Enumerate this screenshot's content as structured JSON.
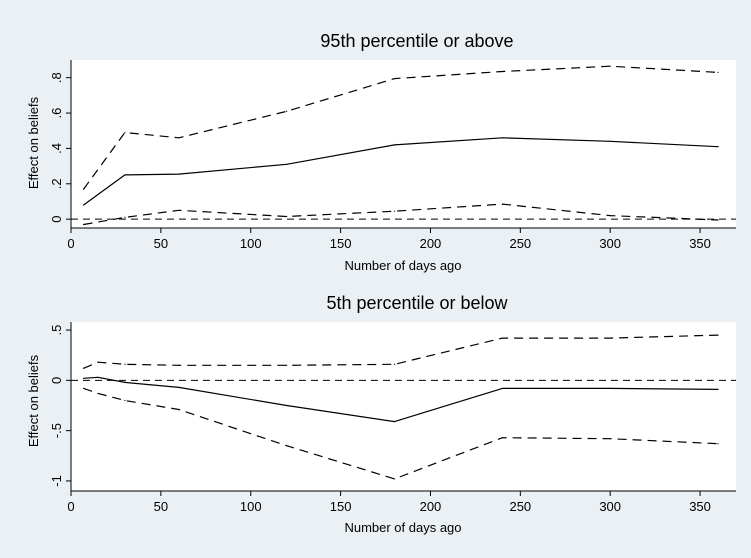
{
  "colors": {
    "background": "#eaf0f4",
    "plot_region": "#ffffff",
    "ink": "#000000"
  },
  "chart_data": [
    {
      "type": "line",
      "title": "95th percentile or above",
      "xlabel": "Number of days ago",
      "ylabel": "Effect on beliefs",
      "xlim": [
        0,
        370
      ],
      "ylim": [
        -0.05,
        0.9
      ],
      "xticks": [
        0,
        50,
        100,
        150,
        200,
        250,
        300,
        350
      ],
      "yticks": [
        0,
        0.2,
        0.4,
        0.6,
        0.8
      ],
      "xtick_labels": [
        "0",
        "50",
        "100",
        "150",
        "200",
        "250",
        "300",
        "350"
      ],
      "ytick_labels": [
        "0",
        ".2",
        ".4",
        ".6",
        ".8"
      ],
      "grid": false,
      "reference_line": {
        "y": 0,
        "style": "dashed"
      },
      "series": [
        {
          "role": "estimate",
          "style": "solid",
          "x": [
            7,
            30,
            60,
            120,
            180,
            240,
            300,
            360
          ],
          "y": [
            0.08,
            0.25,
            0.255,
            0.31,
            0.42,
            0.46,
            0.44,
            0.41
          ]
        },
        {
          "role": "upper_ci",
          "style": "dashed",
          "x": [
            7,
            30,
            60,
            120,
            180,
            240,
            300,
            360
          ],
          "y": [
            0.17,
            0.49,
            0.46,
            0.61,
            0.795,
            0.835,
            0.865,
            0.83
          ]
        },
        {
          "role": "lower_ci",
          "style": "dashed",
          "x": [
            7,
            30,
            60,
            120,
            180,
            240,
            300,
            360
          ],
          "y": [
            -0.03,
            0.01,
            0.05,
            0.015,
            0.045,
            0.085,
            0.02,
            -0.005
          ]
        }
      ]
    },
    {
      "type": "line",
      "title": "5th percentile or below",
      "xlabel": "Number of days ago",
      "ylabel": "Effect on beliefs",
      "xlim": [
        0,
        370
      ],
      "ylim": [
        -1.1,
        0.58
      ],
      "xticks": [
        0,
        50,
        100,
        150,
        200,
        250,
        300,
        350
      ],
      "yticks": [
        -1,
        -0.5,
        0,
        0.5
      ],
      "xtick_labels": [
        "0",
        "50",
        "100",
        "150",
        "200",
        "250",
        "300",
        "350"
      ],
      "ytick_labels": [
        "-1",
        "-.5",
        "0",
        ".5"
      ],
      "grid": false,
      "reference_line": {
        "y": 0,
        "style": "dashed"
      },
      "series": [
        {
          "role": "estimate",
          "style": "solid",
          "x": [
            7,
            15,
            30,
            60,
            120,
            180,
            240,
            300,
            360
          ],
          "y": [
            0.02,
            0.03,
            -0.02,
            -0.07,
            -0.25,
            -0.41,
            -0.08,
            -0.08,
            -0.09
          ]
        },
        {
          "role": "upper_ci",
          "style": "dashed",
          "x": [
            7,
            15,
            30,
            60,
            120,
            180,
            240,
            300,
            360
          ],
          "y": [
            0.12,
            0.18,
            0.16,
            0.15,
            0.15,
            0.16,
            0.42,
            0.42,
            0.45
          ]
        },
        {
          "role": "lower_ci",
          "style": "dashed",
          "x": [
            7,
            15,
            30,
            60,
            120,
            180,
            240,
            300,
            360
          ],
          "y": [
            -0.08,
            -0.13,
            -0.2,
            -0.29,
            -0.65,
            -0.98,
            -0.57,
            -0.58,
            -0.63
          ]
        }
      ]
    }
  ]
}
